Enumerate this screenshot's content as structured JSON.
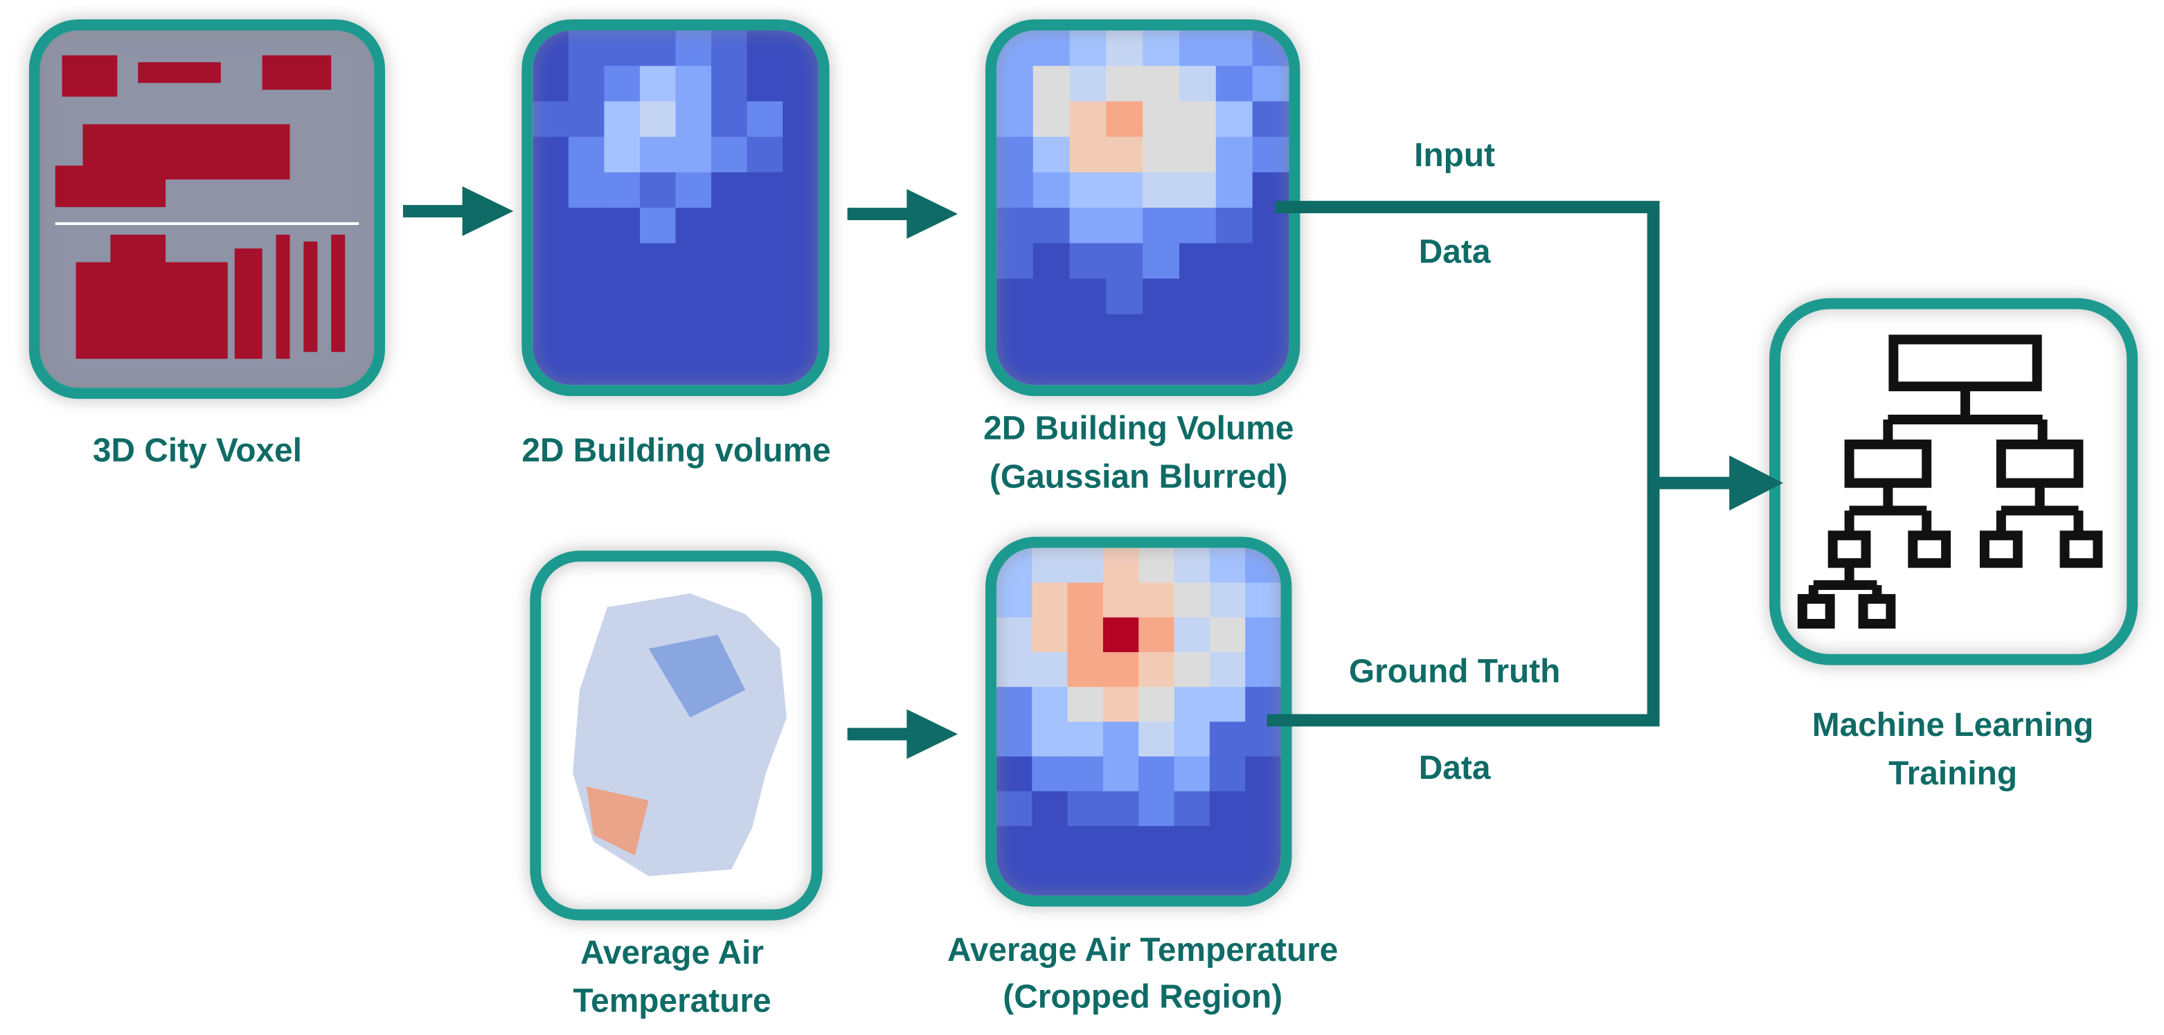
{
  "nodes": [
    {
      "lines": [
        "3D City Voxel"
      ]
    },
    {
      "lines": [
        "2D Building volume"
      ]
    },
    {
      "lines": [
        "2D Building Volume",
        "(Gaussian Blurred)"
      ]
    },
    {
      "lines": [
        "Average Air",
        "Temperature"
      ]
    },
    {
      "lines": [
        "Average Air Temperature",
        "(Cropped Region)"
      ]
    },
    {
      "lines": [
        "Machine Learning",
        "Training"
      ]
    }
  ],
  "edges": [
    {
      "lines": [
        "Input",
        "Data"
      ]
    },
    {
      "lines": [
        "Ground Truth",
        "Data"
      ]
    }
  ]
}
